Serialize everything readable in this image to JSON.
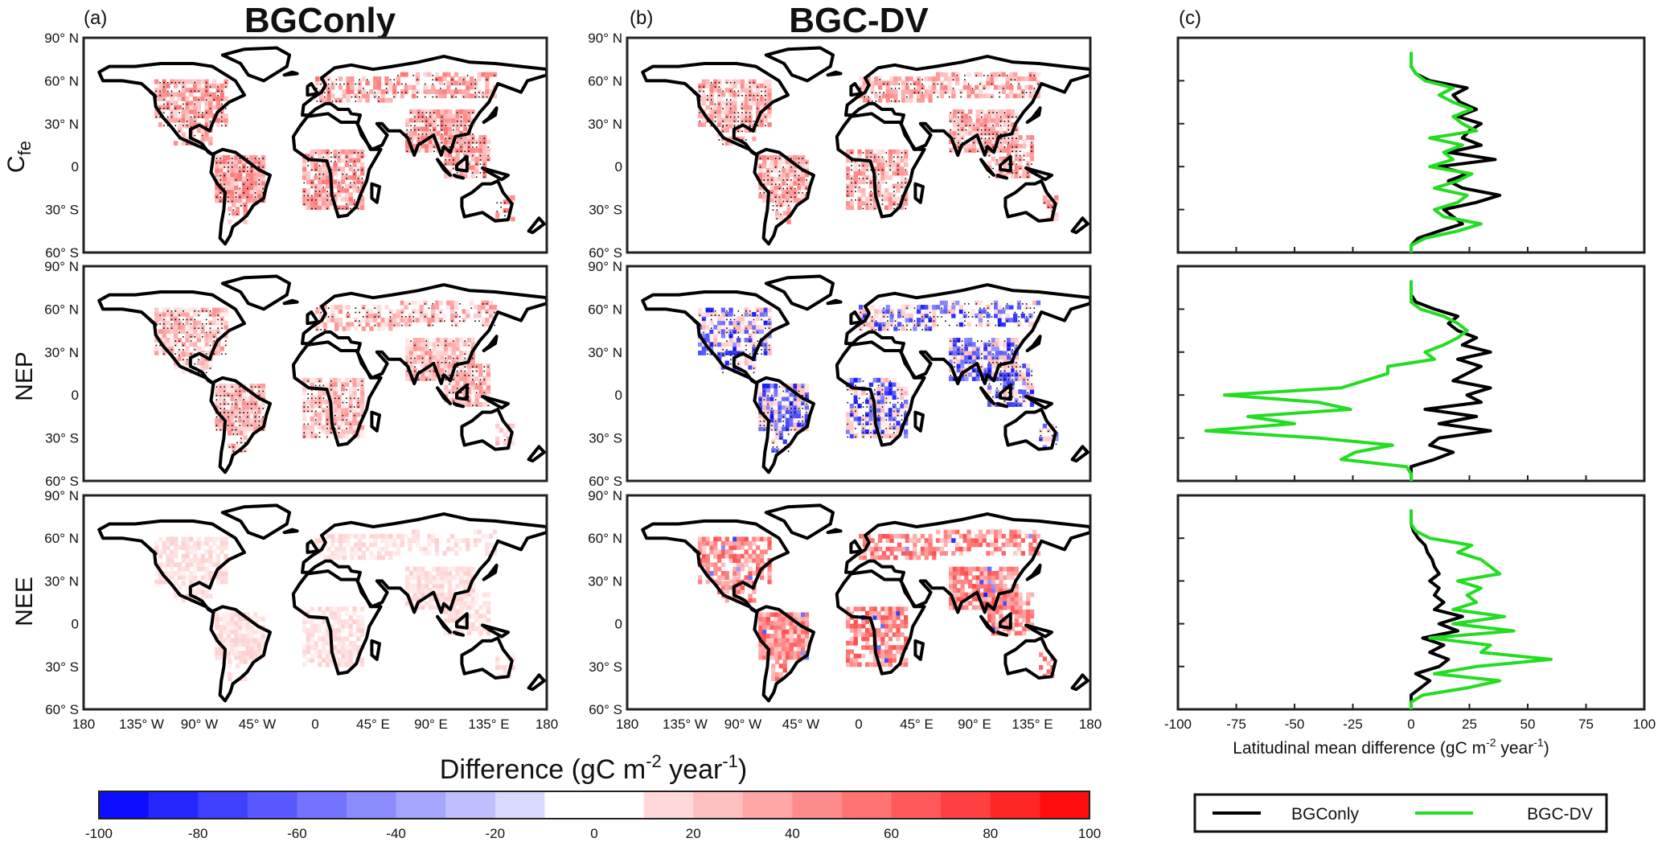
{
  "panels": {
    "a": {
      "letter": "(a)",
      "title": "BGConly"
    },
    "b": {
      "letter": "(b)",
      "title": "BGC-DV"
    },
    "c": {
      "letter": "(c)"
    }
  },
  "rows": [
    "C",
    "NEP",
    "NEE"
  ],
  "row_subscript": "fe",
  "map_lat_ticks": [
    "90° N",
    "60° N",
    "30° N",
    "0",
    "30° S",
    "60° S"
  ],
  "map_lon_ticks": [
    "180",
    "135° W",
    "90° W",
    "45° W",
    "0",
    "45° E",
    "90° E",
    "135° E",
    "180"
  ],
  "colorbar": {
    "title": "Difference (gC m",
    "title_sup": "-2",
    "title_mid": " year",
    "title_sup2": "-1",
    "title_end": ")",
    "ticks": [
      "-100",
      "-80",
      "-60",
      "-40",
      "-20",
      "0",
      "20",
      "40",
      "60",
      "80",
      "100"
    ],
    "min": -100,
    "max": 100,
    "steps": 20
  },
  "colors": {
    "bgconly": "#000000",
    "bgcdv": "#22dd22",
    "neg": "#0000ff",
    "pos": "#ff0000"
  },
  "chart_data": {
    "type": "line",
    "orientation": "vertical-profile",
    "xlabel": "Latitudinal mean difference (gC m",
    "xlabel_sup": "-2",
    "xlabel_mid": " year",
    "xlabel_sup2": "-1",
    "xlabel_end": ")",
    "xticks": [
      "-100",
      "-75",
      "-50",
      "-25",
      "0",
      "25",
      "50",
      "75",
      "100"
    ],
    "xlim": [
      -100,
      100
    ],
    "ylim": [
      -60,
      90
    ],
    "legend": {
      "placement": "bottom",
      "entries": [
        "BGConly",
        "BGC-DV"
      ]
    },
    "lat": [
      -60,
      -55,
      -50,
      -45,
      -40,
      -35,
      -30,
      -25,
      -20,
      -15,
      -10,
      -5,
      0,
      5,
      10,
      15,
      20,
      25,
      30,
      35,
      40,
      45,
      50,
      55,
      60,
      65,
      70,
      75,
      80
    ],
    "panels": [
      {
        "row": "Cfe",
        "series": [
          {
            "name": "BGConly",
            "values": [
              0,
              0,
              3,
              12,
              22,
              18,
              14,
              28,
              38,
              22,
              16,
              24,
              12,
              36,
              16,
              30,
              22,
              25,
              30,
              20,
              28,
              21,
              18,
              24,
              8,
              2,
              0,
              0,
              0
            ]
          },
          {
            "name": "BGC-DV",
            "values": [
              0,
              0,
              6,
              20,
              30,
              14,
              10,
              20,
              24,
              10,
              20,
              26,
              8,
              18,
              14,
              22,
              8,
              28,
              22,
              18,
              26,
              18,
              12,
              18,
              6,
              2,
              0,
              0,
              0
            ]
          }
        ]
      },
      {
        "row": "NEP",
        "series": [
          {
            "name": "BGConly",
            "values": [
              0,
              0,
              0,
              10,
              18,
              8,
              12,
              34,
              12,
              28,
              6,
              30,
              24,
              34,
              18,
              24,
              30,
              20,
              34,
              22,
              28,
              20,
              16,
              20,
              10,
              2,
              0,
              0,
              0
            ]
          },
          {
            "name": "BGC-DV",
            "values": [
              0,
              0,
              -2,
              -30,
              -24,
              -8,
              -40,
              -88,
              -50,
              -70,
              -26,
              -40,
              -80,
              -30,
              -20,
              -10,
              -10,
              10,
              6,
              14,
              20,
              24,
              20,
              14,
              4,
              0,
              0,
              0,
              0
            ]
          }
        ]
      },
      {
        "row": "NEE",
        "series": [
          {
            "name": "BGConly",
            "values": [
              0,
              0,
              0,
              4,
              8,
              2,
              12,
              16,
              8,
              14,
              5,
              20,
              12,
              22,
              10,
              14,
              10,
              12,
              8,
              12,
              10,
              9,
              7,
              6,
              3,
              1,
              0,
              0,
              0
            ]
          },
          {
            "name": "BGC-DV",
            "values": [
              0,
              0,
              5,
              24,
              38,
              10,
              28,
              60,
              30,
              34,
              8,
              44,
              18,
              40,
              18,
              28,
              24,
              30,
              20,
              38,
              34,
              30,
              20,
              26,
              8,
              2,
              0,
              0,
              0
            ]
          }
        ]
      }
    ]
  }
}
